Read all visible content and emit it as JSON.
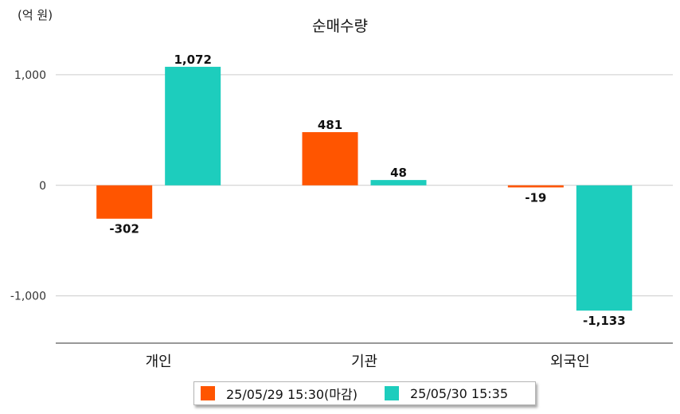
{
  "chart_data": {
    "type": "bar",
    "title": "순매수량",
    "unit_label": "(억 원)",
    "categories": [
      "개인",
      "기관",
      "외국인"
    ],
    "series": [
      {
        "name": "25/05/29 15:30(마감)",
        "color": "#ff5500",
        "values": [
          -302,
          481,
          -19
        ],
        "labels": [
          "-302",
          "481",
          "-19"
        ]
      },
      {
        "name": "25/05/30 15:35",
        "color": "#1dcdbd",
        "values": [
          1072,
          48,
          -1133
        ],
        "labels": [
          "1,072",
          "48",
          "-1,133"
        ]
      }
    ],
    "yticks": [
      1000,
      0,
      -1000
    ],
    "ytick_labels": [
      "1,000",
      "0",
      "-1,000"
    ],
    "ylim": [
      -1420,
      1280
    ],
    "grid": true,
    "legend": "bottom"
  }
}
